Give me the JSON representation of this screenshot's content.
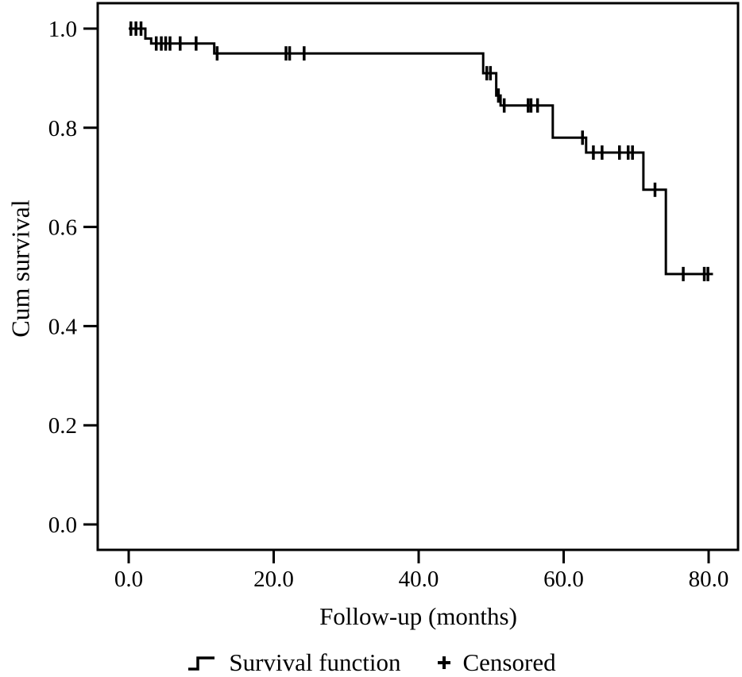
{
  "figure": {
    "background": "#ffffff",
    "line_color": "#000000"
  },
  "chart_data": {
    "type": "line",
    "subtype": "kaplan-meier-step",
    "title": "",
    "xlabel": "Follow-up (months)",
    "ylabel": "Cum survival",
    "xlim": [
      0,
      80
    ],
    "ylim": [
      0.0,
      1.0
    ],
    "grid": false,
    "x_ticks": [
      0,
      20,
      40,
      60,
      80
    ],
    "x_tick_labels": [
      "0.0",
      "20.0",
      "40.0",
      "60.0",
      "80.0"
    ],
    "y_ticks": [
      0.0,
      0.2,
      0.4,
      0.6,
      0.8,
      1.0
    ],
    "y_tick_labels": [
      "0.0",
      "0.2",
      "0.4",
      "0.6",
      "0.8",
      "1.0"
    ],
    "series": [
      {
        "name": "Survival function",
        "steps": [
          [
            0.0,
            1.0
          ],
          [
            2.3,
            0.98
          ],
          [
            3.1,
            0.97
          ],
          [
            11.8,
            0.95
          ],
          [
            48.9,
            0.91
          ],
          [
            50.7,
            0.865
          ],
          [
            51.3,
            0.845
          ],
          [
            58.5,
            0.78
          ],
          [
            63.1,
            0.75
          ],
          [
            71.0,
            0.675
          ],
          [
            74.1,
            0.505
          ],
          [
            80.6,
            0.505
          ]
        ]
      }
    ],
    "censored": {
      "name": "Censored",
      "points": [
        [
          0.3,
          1.0
        ],
        [
          1.0,
          1.0
        ],
        [
          1.7,
          1.0
        ],
        [
          3.8,
          0.97
        ],
        [
          4.5,
          0.97
        ],
        [
          5.1,
          0.97
        ],
        [
          5.7,
          0.97
        ],
        [
          7.1,
          0.97
        ],
        [
          9.3,
          0.97
        ],
        [
          12.2,
          0.95
        ],
        [
          21.7,
          0.95
        ],
        [
          22.2,
          0.95
        ],
        [
          24.2,
          0.95
        ],
        [
          49.4,
          0.91
        ],
        [
          49.9,
          0.91
        ],
        [
          51.0,
          0.865
        ],
        [
          51.8,
          0.845
        ],
        [
          55.1,
          0.845
        ],
        [
          55.5,
          0.845
        ],
        [
          56.4,
          0.845
        ],
        [
          62.6,
          0.78
        ],
        [
          64.1,
          0.75
        ],
        [
          65.3,
          0.75
        ],
        [
          67.7,
          0.75
        ],
        [
          68.9,
          0.75
        ],
        [
          69.5,
          0.75
        ],
        [
          72.6,
          0.675
        ],
        [
          76.5,
          0.505
        ],
        [
          79.4,
          0.505
        ],
        [
          79.9,
          0.505
        ]
      ]
    },
    "legend": {
      "position": "bottom",
      "entries": [
        "Survival function",
        "Censored"
      ]
    }
  }
}
